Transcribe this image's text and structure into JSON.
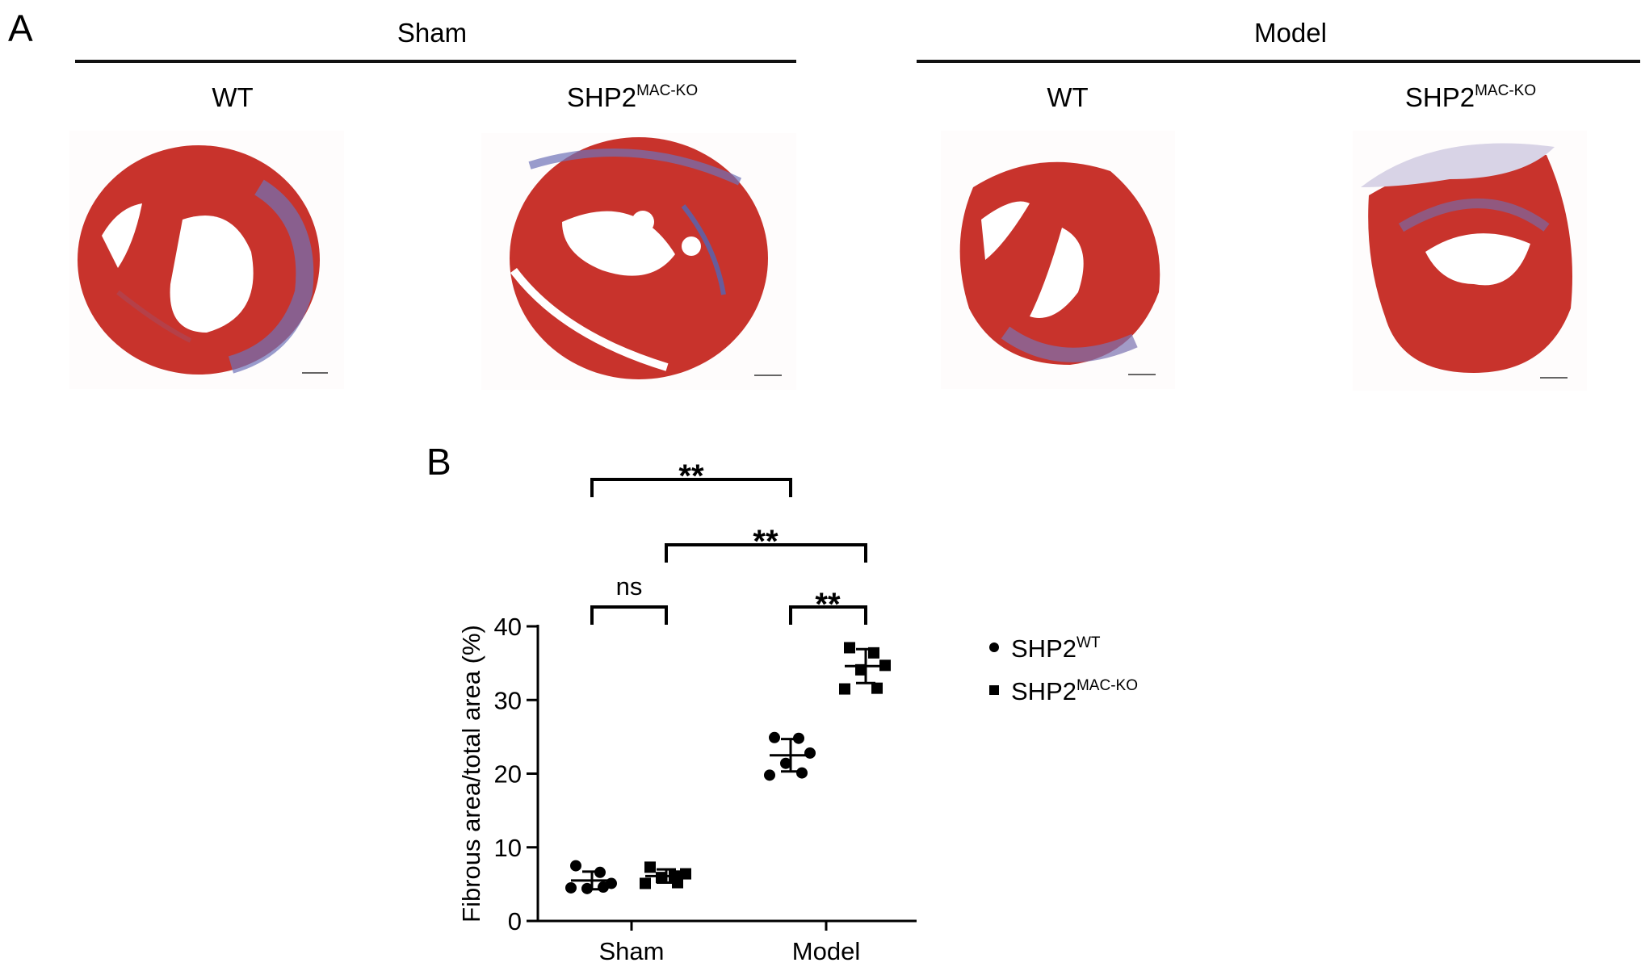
{
  "panel_a": {
    "letter": "A",
    "groups": [
      {
        "title": "Sham",
        "columns": [
          {
            "label_base": "WT",
            "label_sup": ""
          },
          {
            "label_base": "SHP2",
            "label_sup": "MAC-KO"
          }
        ]
      },
      {
        "title": "Model",
        "columns": [
          {
            "label_base": "WT",
            "label_sup": ""
          },
          {
            "label_base": "SHP2",
            "label_sup": "MAC-KO"
          }
        ]
      }
    ],
    "colors": {
      "myocardium": "#c8332c",
      "fibrosis": "#6d72b8",
      "background": "#ffffff"
    }
  },
  "panel_b": {
    "letter": "B"
  },
  "chart_data": {
    "type": "scatter",
    "categories": [
      "Sham",
      "Model"
    ],
    "ylabel": "Fibrous area/total area (%)",
    "xlabel": "",
    "ylim": [
      0,
      40
    ],
    "yticks": [
      0,
      10,
      20,
      30,
      40
    ],
    "series": [
      {
        "name_base": "SHP2",
        "name_sup": "WT",
        "marker": "circle",
        "groups": [
          {
            "category": "Sham",
            "values": [
              7.5,
              6.6,
              5.1,
              4.4,
              4.5,
              4.6
            ],
            "mean": 5.5,
            "sd": 1.2
          },
          {
            "category": "Model",
            "values": [
              24.9,
              24.8,
              22.8,
              21.4,
              19.8,
              20.1
            ],
            "mean": 22.5,
            "sd": 2.2
          }
        ]
      },
      {
        "name_base": "SHP2",
        "name_sup": "MAC-KO",
        "marker": "square",
        "groups": [
          {
            "category": "Sham",
            "values": [
              7.3,
              6.1,
              6.4,
              5.9,
              5.1,
              5.2
            ],
            "mean": 6.1,
            "sd": 0.9
          },
          {
            "category": "Model",
            "values": [
              37.1,
              36.4,
              34.7,
              34.1,
              31.5,
              31.6
            ],
            "mean": 34.6,
            "sd": 2.3
          }
        ]
      }
    ],
    "significance": [
      {
        "label": "**",
        "from": "Sham SHP2WT",
        "to": "Model SHP2WT"
      },
      {
        "label": "**",
        "from": "Sham SHP2MAC-KO",
        "to": "Model SHP2MAC-KO"
      },
      {
        "label": "ns",
        "from": "Sham SHP2WT",
        "to": "Sham SHP2MAC-KO"
      },
      {
        "label": "**",
        "from": "Model SHP2WT",
        "to": "Model SHP2MAC-KO"
      }
    ],
    "legend_position": "right",
    "grid": false
  }
}
